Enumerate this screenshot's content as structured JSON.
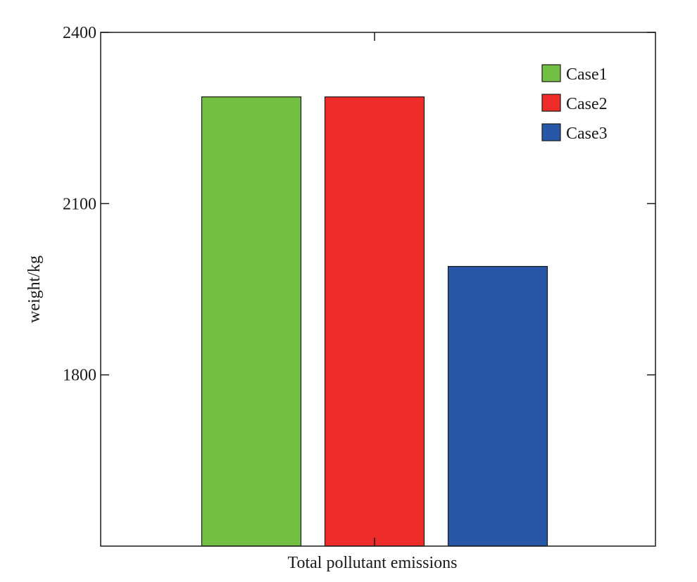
{
  "chart_data": {
    "type": "bar",
    "title": "",
    "xlabel": "Total pollutant emissions",
    "ylabel": "weight/kg",
    "ylim": [
      1500,
      2400
    ],
    "yticks": [
      1800,
      2100,
      2400
    ],
    "grid": false,
    "legend_position": "top-right",
    "series": [
      {
        "name": "Case1",
        "value": 2287,
        "color": "#72bf44"
      },
      {
        "name": "Case2",
        "value": 2287,
        "color": "#ee2d2a"
      },
      {
        "name": "Case3",
        "value": 1990,
        "color": "#2757a6"
      }
    ]
  }
}
